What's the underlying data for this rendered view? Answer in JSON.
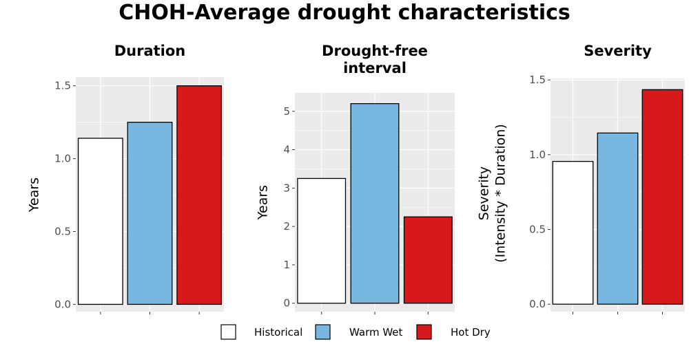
{
  "title": "CHOH-Average drought characteristics",
  "legend": [
    {
      "label": "Historical",
      "color": "#ffffff"
    },
    {
      "label": "Warm Wet",
      "color": "#77b7e0"
    },
    {
      "label": "Hot Dry",
      "color": "#d7191c"
    }
  ],
  "chart_data": [
    {
      "type": "bar",
      "title_lines": [
        "Duration"
      ],
      "ylabel_lines": [
        "Years"
      ],
      "categories": [
        "Historical",
        "Warm Wet",
        "Hot Dry"
      ],
      "values": [
        1.14,
        1.25,
        1.5
      ],
      "ylim": [
        -0.05,
        1.56
      ],
      "yticks": [
        0.0,
        0.5,
        1.0,
        1.5
      ],
      "ytick_labels": [
        "0.0",
        "0.5",
        "1.0",
        "1.5"
      ],
      "grid": true
    },
    {
      "type": "bar",
      "title_lines": [
        "Drought-free",
        "interval"
      ],
      "ylabel_lines": [
        "Years"
      ],
      "categories": [
        "Historical",
        "Warm Wet",
        "Hot Dry"
      ],
      "values": [
        3.25,
        5.2,
        2.25
      ],
      "ylim": [
        -0.22,
        5.48
      ],
      "yticks": [
        0,
        1,
        2,
        3,
        4,
        5
      ],
      "ytick_labels": [
        "0",
        "1",
        "2",
        "3",
        "4",
        "5"
      ],
      "grid": true
    },
    {
      "type": "bar",
      "title_lines": [
        "Severity"
      ],
      "ylabel_lines": [
        "Severity",
        "(Intensity * Duration)"
      ],
      "categories": [
        "Historical",
        "Warm Wet",
        "Hot Dry"
      ],
      "values": [
        0.955,
        1.145,
        1.435
      ],
      "ylim": [
        -0.05,
        1.51
      ],
      "yticks": [
        0.0,
        0.5,
        1.0,
        1.5
      ],
      "ytick_labels": [
        "0.0",
        "0.5",
        "1.0",
        "1.5"
      ],
      "grid": true
    }
  ]
}
